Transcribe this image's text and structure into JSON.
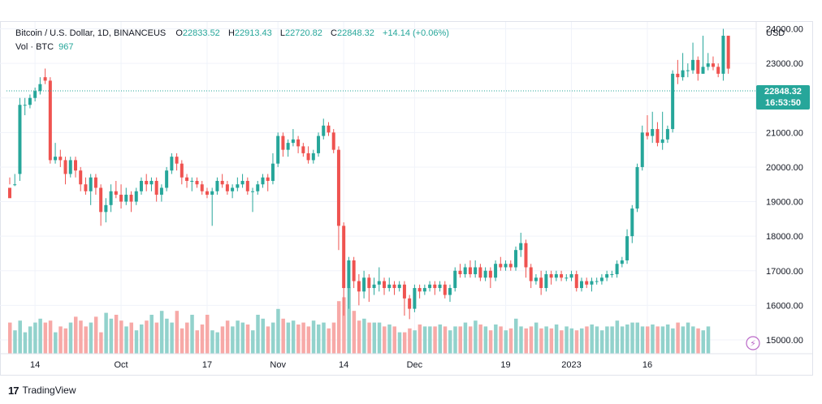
{
  "legend": {
    "symbol": "Bitcoin / U.S. Dollar, 1D, BINANCEUS",
    "open_label": "O",
    "open": "22833.52",
    "high_label": "H",
    "high": "22913.43",
    "low_label": "L",
    "low": "22720.82",
    "close_label": "C",
    "close": "22848.32",
    "change": "+14.14 (+0.06%)",
    "vol_label": "Vol · BTC",
    "vol_value": "967"
  },
  "currency": "USD",
  "last_price": {
    "price": "22848.32",
    "countdown": "16:53:50"
  },
  "footer": {
    "logo": "17",
    "brand": "TradingView"
  },
  "colors": {
    "up": "#26a69a",
    "down": "#ef5350",
    "up_vol": "#92d2cc",
    "down_vol": "#f7a9a7",
    "grid": "#f0f3fa",
    "axis_text": "#131722"
  },
  "chart_data": {
    "type": "candlestick",
    "title": "Bitcoin / U.S. Dollar, 1D, BINANCEUS",
    "ylabel": "USD",
    "ylim": [
      14600,
      24200
    ],
    "y_ticks": [
      "15000.00",
      "16000.00",
      "17000.00",
      "18000.00",
      "19000.00",
      "20000.00",
      "21000.00",
      "22000.00",
      "23000.00",
      "24000.00"
    ],
    "x_ticks": [
      {
        "label": "14",
        "index": 5
      },
      {
        "label": "Oct",
        "index": 22
      },
      {
        "label": "17",
        "index": 39
      },
      {
        "label": "Nov",
        "index": 53
      },
      {
        "label": "14",
        "index": 66
      },
      {
        "label": "Dec",
        "index": 80
      },
      {
        "label": "19",
        "index": 98
      },
      {
        "label": "2023",
        "index": 111
      },
      {
        "label": "16",
        "index": 126
      }
    ],
    "candles": [
      [
        19400,
        19100,
        19700,
        19500
      ],
      [
        19500,
        19500,
        19800,
        19450
      ],
      [
        19800,
        21800,
        22000,
        19600
      ],
      [
        21800,
        21800,
        22000,
        21500
      ],
      [
        21800,
        22000,
        22100,
        21700
      ],
      [
        22000,
        22200,
        22300,
        21900
      ],
      [
        22200,
        22400,
        22600,
        22100
      ],
      [
        22600,
        22500,
        22850,
        22400
      ],
      [
        22500,
        20200,
        22600,
        20100
      ],
      [
        20200,
        20300,
        20700,
        20100
      ],
      [
        20300,
        20200,
        20500,
        20000
      ],
      [
        20200,
        19800,
        20300,
        19500
      ],
      [
        19800,
        20200,
        20300,
        19700
      ],
      [
        20200,
        19900,
        20300,
        19700
      ],
      [
        19900,
        19500,
        20000,
        19300
      ],
      [
        19500,
        19300,
        19700,
        19200
      ],
      [
        19300,
        19700,
        19800,
        18900
      ],
      [
        19700,
        19400,
        19800,
        19200
      ],
      [
        19400,
        18700,
        19500,
        18300
      ],
      [
        18700,
        18900,
        19100,
        18400
      ],
      [
        18900,
        19300,
        19500,
        18700
      ],
      [
        19300,
        19200,
        19600,
        19100
      ],
      [
        19200,
        19000,
        19500,
        18800
      ],
      [
        19000,
        19200,
        19400,
        18900
      ],
      [
        19200,
        19000,
        19300,
        18700
      ],
      [
        19000,
        19300,
        19400,
        18900
      ],
      [
        19300,
        19600,
        19700,
        19200
      ],
      [
        19600,
        19500,
        19800,
        19300
      ],
      [
        19500,
        19600,
        19700,
        19300
      ],
      [
        19600,
        19200,
        19700,
        19000
      ],
      [
        19200,
        19400,
        19500,
        19000
      ],
      [
        19400,
        19900,
        20000,
        19300
      ],
      [
        19900,
        20300,
        20400,
        19800
      ],
      [
        20300,
        20100,
        20400,
        19900
      ],
      [
        20100,
        19700,
        20200,
        19500
      ],
      [
        19700,
        19600,
        19800,
        19400
      ],
      [
        19600,
        19600,
        19700,
        19300
      ],
      [
        19600,
        19500,
        19700,
        19400
      ],
      [
        19500,
        19300,
        19600,
        19200
      ],
      [
        19300,
        19200,
        19400,
        19100
      ],
      [
        19200,
        19300,
        19400,
        18300
      ],
      [
        19300,
        19600,
        19700,
        19200
      ],
      [
        19600,
        19500,
        19800,
        19400
      ],
      [
        19500,
        19300,
        19600,
        19200
      ],
      [
        19300,
        19400,
        19500,
        19100
      ],
      [
        19400,
        19500,
        19700,
        19300
      ],
      [
        19500,
        19600,
        19800,
        19400
      ],
      [
        19600,
        19300,
        19700,
        19200
      ],
      [
        19300,
        19300,
        19400,
        18700
      ],
      [
        19300,
        19500,
        19600,
        19200
      ],
      [
        19500,
        19700,
        19800,
        19400
      ],
      [
        19700,
        19600,
        19800,
        19300
      ],
      [
        19600,
        20100,
        20400,
        19500
      ],
      [
        20100,
        20900,
        21000,
        20000
      ],
      [
        20900,
        20500,
        21000,
        20300
      ],
      [
        20500,
        20700,
        20800,
        20300
      ],
      [
        20700,
        20800,
        21100,
        20600
      ],
      [
        20800,
        20600,
        20900,
        20400
      ],
      [
        20600,
        20400,
        20700,
        20300
      ],
      [
        20400,
        20200,
        20600,
        20100
      ],
      [
        20200,
        20400,
        20500,
        20100
      ],
      [
        20400,
        20900,
        21000,
        20300
      ],
      [
        20900,
        21200,
        21400,
        20800
      ],
      [
        21200,
        21000,
        21300,
        20900
      ],
      [
        21000,
        20500,
        21100,
        20400
      ],
      [
        20500,
        18300,
        20600,
        17600
      ],
      [
        18300,
        16500,
        18400,
        15700
      ],
      [
        16500,
        17300,
        17400,
        15900
      ],
      [
        17300,
        16700,
        17400,
        16500
      ],
      [
        16700,
        16400,
        16900,
        16000
      ],
      [
        16400,
        16800,
        17000,
        16200
      ],
      [
        16800,
        16500,
        16900,
        16100
      ],
      [
        16500,
        16600,
        16800,
        16300
      ],
      [
        16600,
        16700,
        17100,
        16400
      ],
      [
        16700,
        16500,
        16800,
        16300
      ],
      [
        16500,
        16600,
        16800,
        16400
      ],
      [
        16600,
        16500,
        16700,
        16300
      ],
      [
        16500,
        16600,
        16700,
        16400
      ],
      [
        16600,
        16200,
        16700,
        15700
      ],
      [
        16200,
        15900,
        16300,
        15600
      ],
      [
        15900,
        16500,
        16600,
        15800
      ],
      [
        16500,
        16400,
        16600,
        16200
      ],
      [
        16400,
        16500,
        16600,
        16300
      ],
      [
        16500,
        16600,
        16700,
        16400
      ],
      [
        16600,
        16500,
        16700,
        16300
      ],
      [
        16500,
        16600,
        16700,
        16400
      ],
      [
        16600,
        16300,
        16700,
        16200
      ],
      [
        16300,
        16500,
        16600,
        16100
      ],
      [
        16500,
        17000,
        17100,
        16400
      ],
      [
        17000,
        16900,
        17200,
        16800
      ],
      [
        16900,
        17100,
        17200,
        16800
      ],
      [
        17100,
        16900,
        17300,
        16800
      ],
      [
        16900,
        17100,
        17300,
        16800
      ],
      [
        17100,
        16800,
        17200,
        16700
      ],
      [
        16800,
        17000,
        17100,
        16700
      ],
      [
        17000,
        16800,
        17100,
        16500
      ],
      [
        16800,
        17200,
        17300,
        16700
      ],
      [
        17200,
        17100,
        17400,
        17000
      ],
      [
        17100,
        17200,
        17300,
        17000
      ],
      [
        17200,
        17100,
        17300,
        17000
      ],
      [
        17100,
        17600,
        17700,
        17000
      ],
      [
        17600,
        17800,
        18100,
        17400
      ],
      [
        17800,
        17100,
        17900,
        16800
      ],
      [
        17100,
        16700,
        17200,
        16500
      ],
      [
        16700,
        16800,
        16900,
        16600
      ],
      [
        16800,
        16500,
        17000,
        16300
      ],
      [
        16500,
        16900,
        17000,
        16400
      ],
      [
        16900,
        16800,
        17000,
        16600
      ],
      [
        16800,
        16900,
        17000,
        16700
      ],
      [
        16900,
        16800,
        17000,
        16700
      ],
      [
        16800,
        16800,
        16900,
        16700
      ],
      [
        16800,
        16900,
        17000,
        16700
      ],
      [
        16900,
        16500,
        17000,
        16400
      ],
      [
        16500,
        16700,
        16800,
        16400
      ],
      [
        16700,
        16600,
        16800,
        16500
      ],
      [
        16600,
        16700,
        16800,
        16400
      ],
      [
        16700,
        16700,
        16800,
        16600
      ],
      [
        16700,
        16800,
        16900,
        16600
      ],
      [
        16800,
        16900,
        17000,
        16700
      ],
      [
        16900,
        16900,
        17000,
        16800
      ],
      [
        16900,
        17200,
        17300,
        16800
      ],
      [
        17200,
        17300,
        17400,
        17100
      ],
      [
        17300,
        18000,
        18200,
        17200
      ],
      [
        18000,
        18800,
        18900,
        17800
      ],
      [
        18800,
        20000,
        20100,
        18700
      ],
      [
        20000,
        21000,
        21200,
        19900
      ],
      [
        21000,
        20900,
        21500,
        20800
      ],
      [
        20900,
        21100,
        21600,
        20700
      ],
      [
        21100,
        20700,
        21300,
        20600
      ],
      [
        20700,
        20800,
        21600,
        20500
      ],
      [
        20800,
        21100,
        21200,
        20700
      ],
      [
        21100,
        22700,
        22800,
        21000
      ],
      [
        22700,
        22600,
        23100,
        22400
      ],
      [
        22600,
        22800,
        23300,
        22500
      ],
      [
        22800,
        22800,
        23000,
        22600
      ],
      [
        22800,
        23100,
        23600,
        22700
      ],
      [
        23100,
        22700,
        23200,
        22500
      ],
      [
        22700,
        22900,
        23800,
        22700
      ],
      [
        22900,
        23000,
        23300,
        22800
      ],
      [
        23000,
        22900,
        23200,
        22800
      ],
      [
        22900,
        22700,
        23000,
        22600
      ],
      [
        22700,
        23800,
        24000,
        22500
      ],
      [
        23800,
        22848,
        23800,
        22700
      ]
    ],
    "volumes": [
      16,
      12,
      17,
      11,
      14,
      16,
      18,
      16,
      17,
      11,
      14,
      13,
      16,
      19,
      17,
      14,
      16,
      19,
      11,
      21,
      18,
      20,
      17,
      14,
      16,
      12,
      15,
      17,
      20,
      16,
      22,
      18,
      16,
      22,
      13,
      16,
      20,
      12,
      15,
      20,
      12,
      11,
      14,
      17,
      14,
      17,
      16,
      15,
      12,
      20,
      18,
      14,
      16,
      23,
      18,
      16,
      17,
      15,
      16,
      14,
      17,
      15,
      16,
      13,
      16,
      27,
      29,
      34,
      22,
      17,
      18,
      16,
      16,
      16,
      14,
      15,
      14,
      11,
      11,
      13,
      12,
      15,
      14,
      14,
      14,
      15,
      14,
      12,
      14,
      14,
      16,
      14,
      17,
      15,
      14,
      12,
      15,
      14,
      12,
      13,
      18,
      14,
      13,
      14,
      16,
      13,
      14,
      13,
      15,
      12,
      14,
      13,
      12,
      13,
      14,
      15,
      14,
      12,
      14,
      14,
      17,
      14,
      15,
      16,
      16,
      14,
      14,
      15,
      14,
      14,
      15,
      13,
      16,
      14,
      16,
      14,
      13,
      12,
      14
    ]
  }
}
